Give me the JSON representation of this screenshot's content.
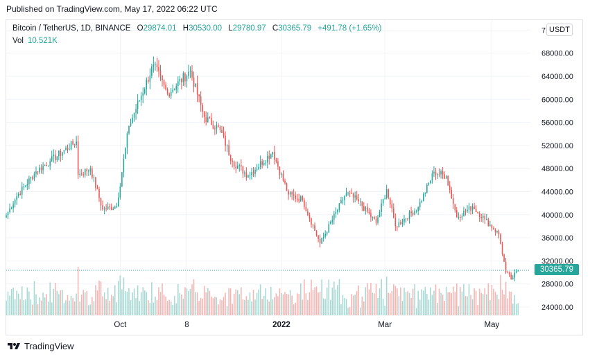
{
  "header": {
    "published": "Published on TradingView.com, May 17, 2022 06:22 UTC"
  },
  "legend": {
    "symbol": "Bitcoin / TetherUS, 1D, BINANCE",
    "o_label": "O",
    "o_value": "29874.01",
    "h_label": "H",
    "h_value": "30530.00",
    "l_label": "L",
    "l_value": "29780.97",
    "c_label": "C",
    "c_value": "30365.79",
    "change": "+491.78 (+1.65%)",
    "vol_label": "Vol",
    "vol_value": "10.521K"
  },
  "currency_button": "USDT",
  "last_price_label": "30365.79",
  "footer": {
    "brand": "TradingView"
  },
  "colors": {
    "up": "#26a69a",
    "down": "#ef5350",
    "up_vol": "#a7d9d3",
    "down_vol": "#f5b5b3",
    "grid": "#f0f3fa",
    "text": "#131722"
  },
  "chart_data": {
    "type": "candlestick",
    "title": "Bitcoin / TetherUS, 1D, BINANCE",
    "ylim": [
      22000,
      72000
    ],
    "y_ticks": [
      "24000.00",
      "28000.00",
      "32000.00",
      "36000.00",
      "40000.00",
      "44000.00",
      "48000.00",
      "52000.00",
      "56000.00",
      "60000.00",
      "64000.00",
      "68000.00",
      "7"
    ],
    "y_tick_values": [
      24000,
      28000,
      32000,
      36000,
      40000,
      44000,
      48000,
      52000,
      56000,
      60000,
      64000,
      68000,
      72000
    ],
    "x_ticks": [
      "Oct",
      "8",
      "2022",
      "Mar",
      "May"
    ],
    "x_tick_dates": [
      "2021-10-01",
      "2021-11-08",
      "2022-01-01",
      "2022-03-01",
      "2022-05-01"
    ],
    "x_range": [
      "2021-07-28",
      "2022-05-23"
    ],
    "last_close": 30365.79,
    "anchor_closes": [
      [
        "2021-07-28",
        39900
      ],
      [
        "2021-08-03",
        43200
      ],
      [
        "2021-08-14",
        47500
      ],
      [
        "2021-08-22",
        49300
      ],
      [
        "2021-09-06",
        52700
      ],
      [
        "2021-09-07",
        46900
      ],
      [
        "2021-09-14",
        48000
      ],
      [
        "2021-09-21",
        40900
      ],
      [
        "2021-09-29",
        41500
      ],
      [
        "2021-10-06",
        55400
      ],
      [
        "2021-10-20",
        66000
      ],
      [
        "2021-10-28",
        61000
      ],
      [
        "2021-11-10",
        64900
      ],
      [
        "2021-11-18",
        56900
      ],
      [
        "2021-11-27",
        54700
      ],
      [
        "2021-12-04",
        49200
      ],
      [
        "2021-12-13",
        46800
      ],
      [
        "2021-12-27",
        50900
      ],
      [
        "2022-01-05",
        43500
      ],
      [
        "2022-01-13",
        42600
      ],
      [
        "2022-01-23",
        35000
      ],
      [
        "2022-02-07",
        43800
      ],
      [
        "2022-02-14",
        42300
      ],
      [
        "2022-02-24",
        38600
      ],
      [
        "2022-03-02",
        44400
      ],
      [
        "2022-03-07",
        38000
      ],
      [
        "2022-03-20",
        41300
      ],
      [
        "2022-03-29",
        47400
      ],
      [
        "2022-04-05",
        46700
      ],
      [
        "2022-04-11",
        39600
      ],
      [
        "2022-04-20",
        41400
      ],
      [
        "2022-04-27",
        39200
      ],
      [
        "2022-05-05",
        36600
      ],
      [
        "2022-05-09",
        30100
      ],
      [
        "2022-05-12",
        28800
      ],
      [
        "2022-05-16",
        30365.79
      ]
    ],
    "volume_note": "volume bars beneath price, scaled relative"
  }
}
